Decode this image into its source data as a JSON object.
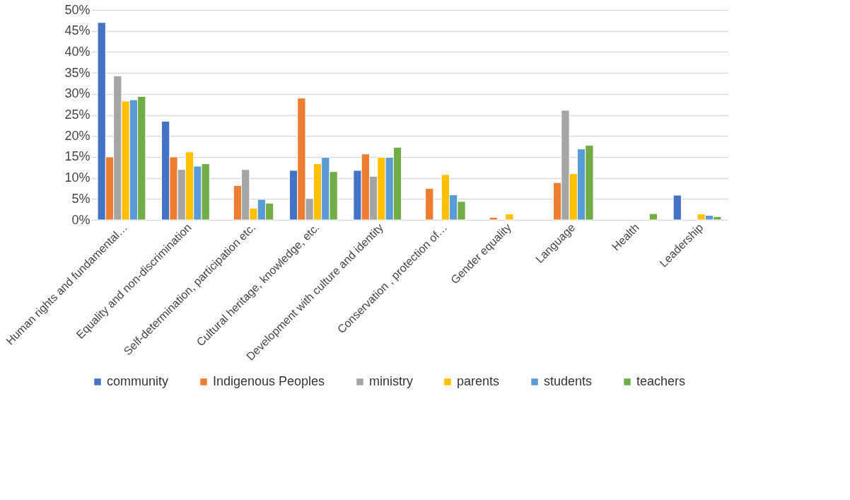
{
  "chart_data": {
    "type": "bar",
    "categories": [
      "Human rights and fundamental…",
      "Equality and non-discrimination",
      "Self-determination, participation etc.",
      "Cultural heritage, knowledge, etc.",
      "Development with culture and identity",
      "Conservation , protection of…",
      "Gender equality",
      "Language",
      "Health",
      "Leadership"
    ],
    "series": [
      {
        "name": "community",
        "color": "#4472c4",
        "values": [
          47,
          23.5,
          null,
          11.8,
          11.8,
          null,
          null,
          null,
          null,
          5.9
        ]
      },
      {
        "name": "Indigenous Peoples",
        "color": "#ed7d31",
        "values": [
          15,
          15,
          8.2,
          29,
          15.7,
          7.5,
          0.6,
          8.9,
          null,
          null
        ]
      },
      {
        "name": "ministry",
        "color": "#a5a5a5",
        "values": [
          34.3,
          12,
          12,
          5.1,
          10.4,
          null,
          null,
          26.1,
          null,
          null
        ]
      },
      {
        "name": "parents",
        "color": "#ffc000",
        "values": [
          28.3,
          16.2,
          2.8,
          13.4,
          14.9,
          10.8,
          1.4,
          11,
          null,
          1.4
        ]
      },
      {
        "name": "students",
        "color": "#5b9bd5",
        "values": [
          28.6,
          12.8,
          4.9,
          14.9,
          14.9,
          6,
          null,
          16.9,
          null,
          1.1
        ]
      },
      {
        "name": "teachers",
        "color": "#70ad47",
        "values": [
          29.4,
          13.4,
          4,
          11.5,
          17.3,
          4.4,
          null,
          17.8,
          1.5,
          0.8
        ]
      }
    ],
    "ylim": [
      0,
      50
    ],
    "yticks": [
      {
        "value": 0,
        "label": "0%"
      },
      {
        "value": 5,
        "label": "5%"
      },
      {
        "value": 10,
        "label": "10%"
      },
      {
        "value": 15,
        "label": "15%"
      },
      {
        "value": 20,
        "label": "20%"
      },
      {
        "value": 25,
        "label": "25%"
      },
      {
        "value": 30,
        "label": "30%"
      },
      {
        "value": 35,
        "label": "35%"
      },
      {
        "value": 40,
        "label": "40%"
      },
      {
        "value": 45,
        "label": "45%"
      },
      {
        "value": 50,
        "label": "50%"
      }
    ],
    "grid": "y",
    "legend": "bottom"
  }
}
